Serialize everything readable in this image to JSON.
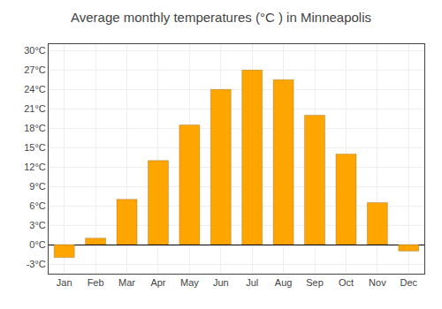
{
  "chart_data": {
    "type": "bar",
    "title": "Average monthly temperatures (°C ) in Minneapolis",
    "categories": [
      "Jan",
      "Feb",
      "Mar",
      "Apr",
      "May",
      "Jun",
      "Jul",
      "Aug",
      "Sep",
      "Oct",
      "Nov",
      "Dec"
    ],
    "values": [
      -2.0,
      1.0,
      7.0,
      13.0,
      18.5,
      24.0,
      27.0,
      25.5,
      20.0,
      14.0,
      6.5,
      -1.0
    ],
    "color": "#FFA500",
    "ylim": [
      -4.5,
      31
    ],
    "yticks": [
      {
        "value": -3,
        "label": "-3°C"
      },
      {
        "value": 0,
        "label": "0°C"
      },
      {
        "value": 3,
        "label": "3°C"
      },
      {
        "value": 6,
        "label": "6°C"
      },
      {
        "value": 9,
        "label": "9°C"
      },
      {
        "value": 12,
        "label": "12°C"
      },
      {
        "value": 15,
        "label": "15°C"
      },
      {
        "value": 18,
        "label": "18°C"
      },
      {
        "value": 21,
        "label": "21°C"
      },
      {
        "value": 24,
        "label": "24°C"
      },
      {
        "value": 27,
        "label": "27°C"
      },
      {
        "value": 30,
        "label": "30°C"
      }
    ],
    "grid": true
  }
}
